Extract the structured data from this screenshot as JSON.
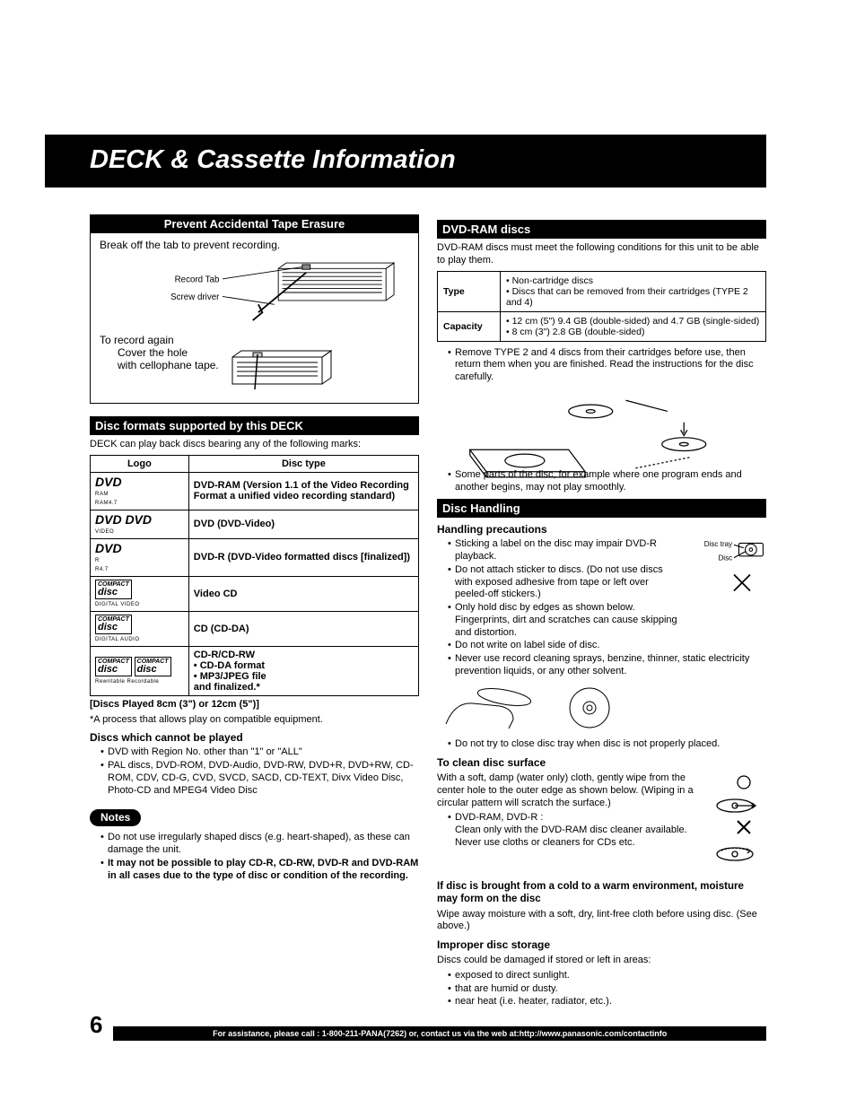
{
  "title": "DECK & Cassette Information",
  "page_number": "6",
  "footer": "For assistance, please call : 1-800-211-PANA(7262) or, contact us via the web at:http://www.panasonic.com/contactinfo",
  "prevent": {
    "header": "Prevent Accidental Tape Erasure",
    "instr": "Break off the tab to prevent recording.",
    "label_record_tab": "Record Tab",
    "label_screwdriver": "Screw driver",
    "again_head": "To record again",
    "again_body": "Cover the hole\nwith cellophane tape."
  },
  "formats": {
    "header": "Disc formats supported by this DECK",
    "intro": "DECK can play back discs bearing any of the following marks:",
    "col_logo": "Logo",
    "col_type": "Disc type",
    "rows": [
      {
        "logo": "DVD",
        "logo_sub": "RAM\nRAM4.7",
        "type": "DVD-RAM (Version 1.1 of the Video Recording Format a unified video recording standard)"
      },
      {
        "logo": "DVD  DVD",
        "logo_sub": "VIDEO",
        "type": "DVD (DVD-Video)"
      },
      {
        "logo": "DVD",
        "logo_sub": "R\nR4.7",
        "type": "DVD-R (DVD-Video formatted discs [finalized])"
      },
      {
        "logo": "disc",
        "logo_sub": "DIGITAL VIDEO",
        "type": "Video CD"
      },
      {
        "logo": "disc",
        "logo_sub": "DIGITAL AUDIO",
        "type": "CD (CD-DA)"
      },
      {
        "logo": "disc  disc",
        "logo_sub": "Rewritable  Recordable",
        "type": "CD-R/CD-RW\n• CD-DA format\n• MP3/JPEG file\n  and finalized.*"
      }
    ],
    "played_note": "[Discs Played 8cm (3\") or 12cm (5\")]",
    "asterisk": "*A process that allows play on compatible equipment.",
    "cannot_head": "Discs which cannot be played",
    "cannot": [
      "DVD with Region No. other than \"1\" or \"ALL\"",
      "PAL discs, DVD-ROM, DVD-Audio, DVD-RW, DVD+R, DVD+RW, CD-ROM, CDV, CD-G, CVD, SVCD, SACD, CD-TEXT, Divx Video Disc, Photo-CD and MPEG4 Video Disc"
    ],
    "notes_label": "Notes",
    "notes": [
      "Do not use irregularly shaped discs (e.g. heart-shaped), as these can damage the unit.",
      "It may not be possible to play CD-R, CD-RW, DVD-R and DVD-RAM in all cases due to the type of disc or condition of the recording."
    ]
  },
  "dvdram": {
    "header": "DVD-RAM discs",
    "intro": "DVD-RAM discs must meet the following conditions for this unit to be able to play them.",
    "row_type_label": "Type",
    "row_type_val": "• Non-cartridge discs\n• Discs that can be removed from their cartridges (TYPE 2 and 4)",
    "row_cap_label": "Capacity",
    "row_cap_val": "• 12 cm (5\") 9.4 GB (double-sided) and 4.7 GB (single-sided)\n• 8 cm (3\") 2.8 GB (double-sided)",
    "bullets": [
      "Remove TYPE 2 and 4 discs from their cartridges before use, then return them when you are finished. Read the instructions for the disc carefully.",
      "Some parts of the disc, for example where one program ends and another begins, may not play smoothly."
    ]
  },
  "handling": {
    "header": "Disc Handling",
    "precautions_head": "Handling precautions",
    "precautions": [
      "Sticking a label on the disc may impair DVD-R playback.",
      "Do not attach sticker to discs. (Do not use discs with exposed adhesive from tape or left over peeled-off stickers.)",
      "Only hold disc by edges as shown below. Fingerprints, dirt and scratches can cause skipping and distortion.",
      "Do not write on label side of disc.",
      "Never use record cleaning sprays, benzine, thinner, static electricity prevention liquids, or any other solvent."
    ],
    "disc_tray_label": "Disc tray",
    "disc_label": "Disc",
    "not_close": "Do not try to close disc tray when disc is not properly placed.",
    "clean_head": "To clean disc surface",
    "clean_body": "With a soft, damp (water only) cloth, gently wipe from the center hole to the outer edge as shown below. (Wiping in a circular pattern will scratch the surface.)",
    "clean_ram": "DVD-RAM, DVD-R :",
    "clean_ram_body": "Clean only with the DVD-RAM disc cleaner available. Never use cloths or cleaners for CDs etc.",
    "moist_head": "If disc is brought from a cold to a warm environment, moisture may form on the disc",
    "moist_body": "Wipe away moisture with a soft, dry, lint-free cloth before using disc. (See above.)",
    "storage_head": "Improper disc storage",
    "storage_intro": "Discs could be damaged if stored or left in areas:",
    "storage": [
      "exposed to direct sunlight.",
      "that are humid or dusty.",
      "near heat (i.e. heater, radiator, etc.)."
    ]
  }
}
